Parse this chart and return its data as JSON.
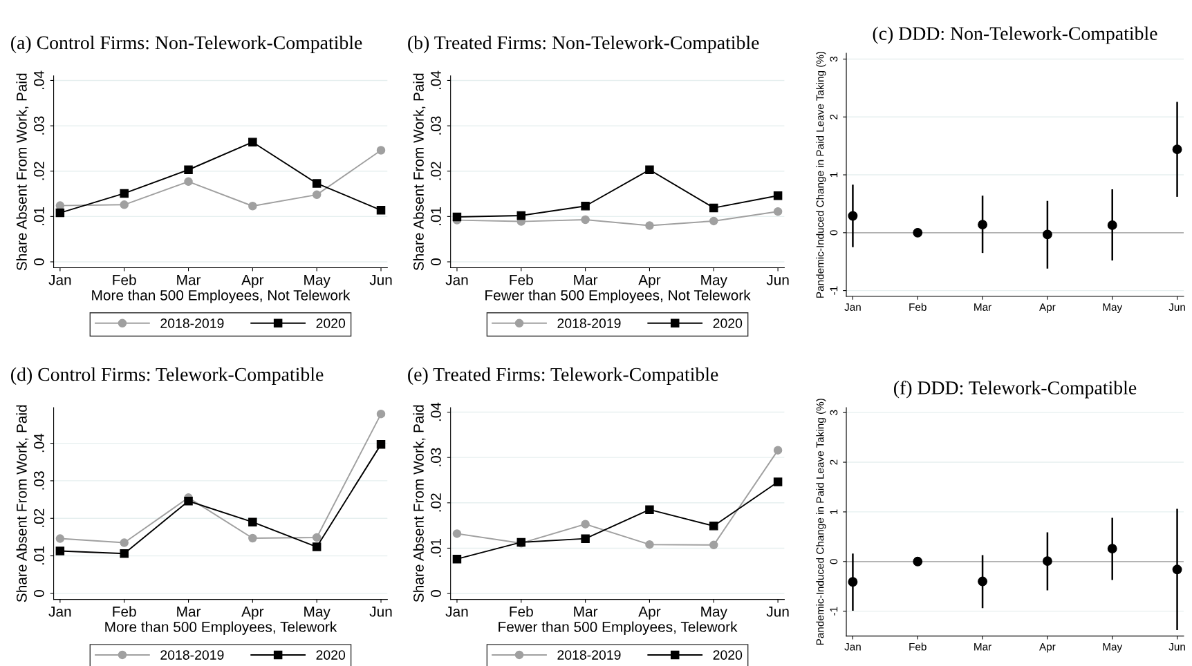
{
  "chart_data": [
    {
      "type": "line",
      "title": "(a) Control Firms: Non-Telework-Compatible",
      "xlabel": "More than 500 Employees, Not Telework",
      "ylabel": "Share Absent From Work, Paid",
      "categories": [
        "Jan",
        "Feb",
        "Mar",
        "Apr",
        "May",
        "Jun"
      ],
      "ylim": [
        -0.0013,
        0.041
      ],
      "yticks": [
        0,
        {
          "value": 0.01,
          "label": ".01"
        },
        {
          "value": 0.02,
          "label": ".02"
        },
        {
          "value": 0.03,
          "label": ".03"
        },
        {
          "value": 0.04,
          "label": ".04"
        }
      ],
      "grid": "y",
      "legend": "bottom",
      "series": [
        {
          "name": "2018-2019",
          "color": "#a0a0a0",
          "marker": "circle",
          "values": [
            0.0124,
            0.0126,
            0.0177,
            0.0123,
            0.0148,
            0.0246
          ]
        },
        {
          "name": "2020",
          "color": "#000000",
          "marker": "square",
          "values": [
            0.0108,
            0.0151,
            0.0203,
            0.0264,
            0.0173,
            0.0114
          ]
        }
      ]
    },
    {
      "type": "line",
      "title": "(b) Treated Firms: Non-Telework-Compatible",
      "xlabel": "Fewer than 500 Employees, Not Telework",
      "ylabel": "Share Absent From Work, Paid",
      "categories": [
        "Jan",
        "Feb",
        "Mar",
        "Apr",
        "May",
        "Jun"
      ],
      "ylim": [
        -0.0013,
        0.041
      ],
      "yticks": [
        0,
        {
          "value": 0.01,
          "label": ".01"
        },
        {
          "value": 0.02,
          "label": ".02"
        },
        {
          "value": 0.03,
          "label": ".03"
        },
        {
          "value": 0.04,
          "label": ".04"
        }
      ],
      "grid": "y",
      "legend": "bottom",
      "series": [
        {
          "name": "2018-2019",
          "color": "#a0a0a0",
          "marker": "circle",
          "values": [
            0.0092,
            0.0089,
            0.0093,
            0.008,
            0.009,
            0.0111
          ]
        },
        {
          "name": "2020",
          "color": "#000000",
          "marker": "square",
          "values": [
            0.0099,
            0.0102,
            0.0123,
            0.0203,
            0.0119,
            0.0146
          ]
        }
      ]
    },
    {
      "type": "scatter",
      "title": "(c) DDD: Non-Telework-Compatible",
      "ylabel": "Pandemic-Induced Change in Paid Leave Taking (%)",
      "categories": [
        "Jan",
        "Feb",
        "Mar",
        "Apr",
        "May",
        "Jun"
      ],
      "ylim": [
        -1.1,
        3.1
      ],
      "yticks": [
        {
          "value": -1,
          "label": "-1"
        },
        0,
        1,
        2,
        3
      ],
      "grid": "y",
      "marker": "circle",
      "ref_lines": [
        {
          "axis": "y",
          "value": 0,
          "color": "#b0b0b0"
        }
      ],
      "series": [
        {
          "color": "#000000",
          "values": [
            0.29,
            0,
            0.14,
            -0.03,
            0.13,
            1.44
          ],
          "errors": [
            [
              -0.25,
              0.83
            ],
            null,
            [
              -0.35,
              0.64
            ],
            [
              -0.62,
              0.55
            ],
            [
              -0.48,
              0.75
            ],
            [
              0.62,
              2.26
            ]
          ]
        }
      ]
    },
    {
      "type": "line",
      "title": "(d) Control Firms: Telework-Compatible",
      "xlabel": "More than 500 Employees, Telework",
      "ylabel": "Share Absent From Work, Paid",
      "categories": [
        "Jan",
        "Feb",
        "Mar",
        "Apr",
        "May",
        "Jun"
      ],
      "ylim": [
        -0.0016,
        0.0495
      ],
      "yticks": [
        0,
        {
          "value": 0.01,
          "label": ".01"
        },
        {
          "value": 0.02,
          "label": ".02"
        },
        {
          "value": 0.03,
          "label": ".03"
        },
        {
          "value": 0.04,
          "label": ".04"
        }
      ],
      "grid": "y",
      "legend": "bottom",
      "series": [
        {
          "name": "2018-2019",
          "color": "#a0a0a0",
          "marker": "circle",
          "values": [
            0.0146,
            0.0135,
            0.0255,
            0.0147,
            0.0149,
            0.0478
          ]
        },
        {
          "name": "2020",
          "color": "#000000",
          "marker": "square",
          "values": [
            0.0113,
            0.0106,
            0.0246,
            0.019,
            0.0124,
            0.0397
          ]
        }
      ]
    },
    {
      "type": "line",
      "title": "(e) Treated Firms: Telework-Compatible",
      "xlabel": "Fewer than 500 Employees, Telework",
      "ylabel": "Share Absent From Work, Paid",
      "categories": [
        "Jan",
        "Feb",
        "Mar",
        "Apr",
        "May",
        "Jun"
      ],
      "ylim": [
        -0.0013,
        0.041
      ],
      "yticks": [
        0,
        {
          "value": 0.01,
          "label": ".01"
        },
        {
          "value": 0.02,
          "label": ".02"
        },
        {
          "value": 0.03,
          "label": ".03"
        },
        {
          "value": 0.04,
          "label": ".04"
        }
      ],
      "grid": "y",
      "legend": "bottom",
      "series": [
        {
          "name": "2018-2019",
          "color": "#a0a0a0",
          "marker": "circle",
          "values": [
            0.0132,
            0.0111,
            0.0153,
            0.0108,
            0.0107,
            0.0316
          ]
        },
        {
          "name": "2020",
          "color": "#000000",
          "marker": "square",
          "values": [
            0.0076,
            0.0113,
            0.0121,
            0.0185,
            0.0149,
            0.0246
          ]
        }
      ]
    },
    {
      "type": "scatter",
      "title": "(f) DDD: Telework-Compatible",
      "ylabel": "Pandemic-Induced Change in Paid Leave Taking (%)",
      "categories": [
        "Jan",
        "Feb",
        "Mar",
        "Apr",
        "May",
        "Jun"
      ],
      "ylim": [
        -1.5,
        3.1
      ],
      "yticks": [
        {
          "value": -1,
          "label": "-1"
        },
        0,
        1,
        2,
        3
      ],
      "grid": "y",
      "marker": "circle",
      "ref_lines": [
        {
          "axis": "y",
          "value": 0,
          "color": "#b0b0b0"
        }
      ],
      "series": [
        {
          "color": "#000000",
          "values": [
            -0.41,
            0,
            -0.4,
            0.01,
            0.26,
            -0.16
          ],
          "errors": [
            [
              -0.99,
              0.16
            ],
            null,
            [
              -0.94,
              0.13
            ],
            [
              -0.58,
              0.59
            ],
            [
              -0.37,
              0.88
            ],
            [
              -1.38,
              1.06
            ]
          ]
        }
      ]
    }
  ]
}
